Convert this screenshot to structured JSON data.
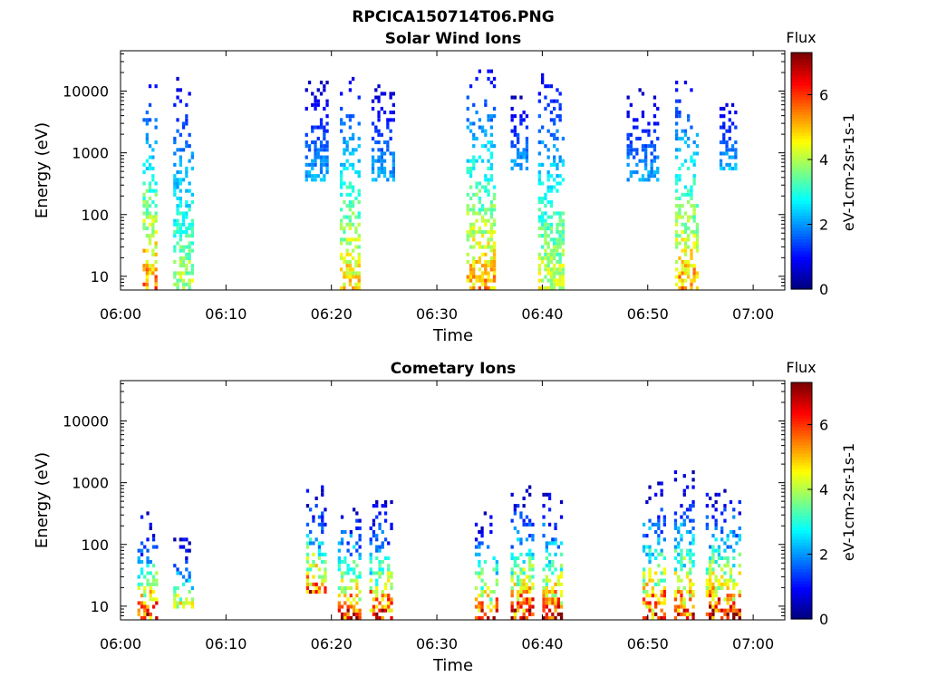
{
  "figure": {
    "main_title": "RPCICA150714T06.PNG"
  },
  "colors": {
    "colormap": "jet",
    "axis": "#000000",
    "background": "#ffffff"
  },
  "chart_data": [
    {
      "type": "heatmap",
      "title": "Solar Wind Ions",
      "xlabel": "Time",
      "ylabel": "Energy (eV)",
      "x_ticks": [
        "06:00",
        "06:10",
        "06:20",
        "06:30",
        "06:40",
        "06:50",
        "07:00"
      ],
      "x_range_minutes": [
        0,
        63
      ],
      "y_ticks": [
        "10",
        "100",
        "1000",
        "10000"
      ],
      "y_scale": "log",
      "y_range": [
        6,
        45000
      ],
      "colorbar": {
        "title": "Flux",
        "unit_label": "eV-1cm-2sr-1s-1",
        "ticks": [
          "0",
          "2",
          "4",
          "6"
        ],
        "range": [
          0,
          7.3
        ]
      },
      "bursts": [
        {
          "t0": 2.1,
          "t1": 3.3,
          "e_low": 6,
          "e_high": 14000,
          "peak": 6.0
        },
        {
          "t0": 5.0,
          "t1": 6.8,
          "e_low": 6,
          "e_high": 15000,
          "peak": 4.5
        },
        {
          "t0": 17.5,
          "t1": 19.5,
          "e_low": 300,
          "e_high": 15000,
          "peak": 2.5
        },
        {
          "t0": 20.8,
          "t1": 22.6,
          "e_low": 6,
          "e_high": 15000,
          "peak": 5.5
        },
        {
          "t0": 23.8,
          "t1": 25.8,
          "e_low": 300,
          "e_high": 15000,
          "peak": 2.5
        },
        {
          "t0": 32.8,
          "t1": 35.4,
          "e_low": 6,
          "e_high": 22000,
          "peak": 5.8
        },
        {
          "t0": 37.0,
          "t1": 38.5,
          "e_low": 500,
          "e_high": 8000,
          "peak": 2.5
        },
        {
          "t0": 39.6,
          "t1": 42.0,
          "e_low": 6,
          "e_high": 22000,
          "peak": 4.8
        },
        {
          "t0": 48.0,
          "t1": 51.0,
          "e_low": 300,
          "e_high": 10000,
          "peak": 2.5
        },
        {
          "t0": 52.6,
          "t1": 54.6,
          "e_low": 6,
          "e_high": 14000,
          "peak": 5.8
        },
        {
          "t0": 56.8,
          "t1": 58.3,
          "e_low": 500,
          "e_high": 8000,
          "peak": 2.5
        }
      ]
    },
    {
      "type": "heatmap",
      "title": "Cometary Ions",
      "xlabel": "Time",
      "ylabel": "Energy (eV)",
      "x_ticks": [
        "06:00",
        "06:10",
        "06:20",
        "06:30",
        "06:40",
        "06:50",
        "07:00"
      ],
      "x_range_minutes": [
        0,
        63
      ],
      "y_ticks": [
        "10",
        "100",
        "1000",
        "10000"
      ],
      "y_scale": "log",
      "y_range": [
        6,
        45000
      ],
      "colorbar": {
        "title": "Flux",
        "unit_label": "eV-1cm-2sr-1s-1",
        "ticks": [
          "0",
          "2",
          "4",
          "6"
        ],
        "range": [
          0,
          7.3
        ]
      },
      "bursts": [
        {
          "t0": 1.6,
          "t1": 3.4,
          "e_low": 6,
          "e_high": 300,
          "peak": 6.8
        },
        {
          "t0": 5.0,
          "t1": 6.8,
          "e_low": 8,
          "e_high": 120,
          "peak": 5.0
        },
        {
          "t0": 17.6,
          "t1": 19.3,
          "e_low": 15,
          "e_high": 800,
          "peak": 6.5
        },
        {
          "t0": 20.6,
          "t1": 22.7,
          "e_low": 6,
          "e_high": 500,
          "peak": 7.1
        },
        {
          "t0": 23.6,
          "t1": 25.8,
          "e_low": 6,
          "e_high": 500,
          "peak": 7.3
        },
        {
          "t0": 33.6,
          "t1": 35.7,
          "e_low": 6,
          "e_high": 300,
          "peak": 6.8
        },
        {
          "t0": 37.0,
          "t1": 39.2,
          "e_low": 6,
          "e_high": 800,
          "peak": 7.3
        },
        {
          "t0": 40.0,
          "t1": 41.8,
          "e_low": 6,
          "e_high": 800,
          "peak": 7.0
        },
        {
          "t0": 49.5,
          "t1": 51.5,
          "e_low": 6,
          "e_high": 1000,
          "peak": 7.2
        },
        {
          "t0": 52.5,
          "t1": 54.4,
          "e_low": 6,
          "e_high": 1500,
          "peak": 6.8
        },
        {
          "t0": 55.5,
          "t1": 58.8,
          "e_low": 6,
          "e_high": 900,
          "peak": 7.3
        }
      ]
    }
  ]
}
